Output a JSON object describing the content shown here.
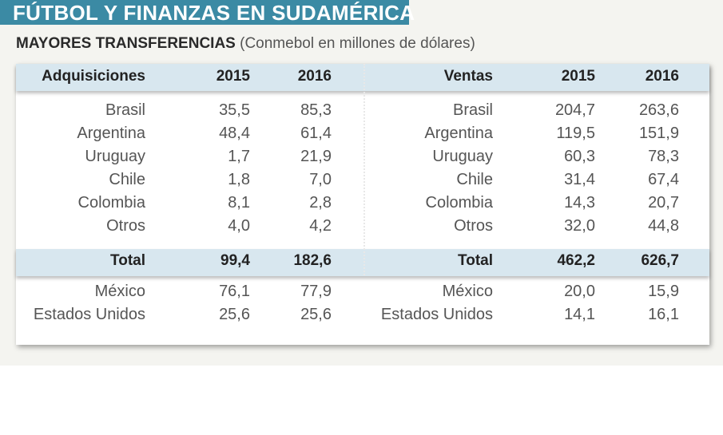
{
  "title": "FÚTBOL Y FINANZAS EN SUDAMÉRICA",
  "subtitle": "MAYORES TRANSFERENCIAS",
  "subtitle_note": "(Conmebol en millones de dólares)",
  "colors": {
    "title_bar": "#3b8aa4",
    "header_band": "#d8e7ef"
  },
  "chart_data": {
    "type": "table",
    "left": {
      "header": [
        "Adquisiciones",
        "2015",
        "2016"
      ],
      "rows": [
        [
          "Brasil",
          "35,5",
          "85,3"
        ],
        [
          "Argentina",
          "48,4",
          "61,4"
        ],
        [
          "Uruguay",
          "1,7",
          "21,9"
        ],
        [
          "Chile",
          "1,8",
          "7,0"
        ],
        [
          "Colombia",
          "8,1",
          "2,8"
        ],
        [
          "Otros",
          "4,0",
          "4,2"
        ]
      ],
      "total": [
        "Total",
        "99,4",
        "182,6"
      ],
      "extra": [
        [
          "México",
          "76,1",
          "77,9"
        ],
        [
          "Estados Unidos",
          "25,6",
          "25,6"
        ]
      ]
    },
    "right": {
      "header": [
        "Ventas",
        "2015",
        "2016"
      ],
      "rows": [
        [
          "Brasil",
          "204,7",
          "263,6"
        ],
        [
          "Argentina",
          "119,5",
          "151,9"
        ],
        [
          "Uruguay",
          "60,3",
          "78,3"
        ],
        [
          "Chile",
          "31,4",
          "67,4"
        ],
        [
          "Colombia",
          "14,3",
          "20,7"
        ],
        [
          "Otros",
          "32,0",
          "44,8"
        ]
      ],
      "total": [
        "Total",
        "462,2",
        "626,7"
      ],
      "extra": [
        [
          "México",
          "20,0",
          "15,9"
        ],
        [
          "Estados Unidos",
          "14,1",
          "16,1"
        ]
      ]
    }
  }
}
